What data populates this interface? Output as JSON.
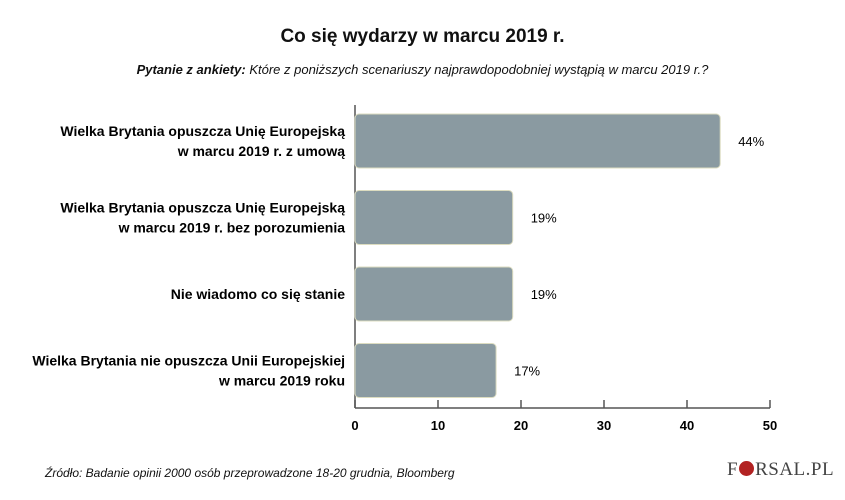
{
  "chart_data": {
    "type": "bar",
    "orientation": "horizontal",
    "title": "Co się wydarzy w marcu 2019 r.",
    "subtitle_label": "Pytanie z ankiety:",
    "subtitle": "Które z poniższych scenariuszy najprawdopodobniej wystąpią w marcu 2019 r.?",
    "categories": [
      [
        "Wielka Brytania opuszcza Unię Europejską",
        "w marcu 2019 r. z umową"
      ],
      [
        "Wielka Brytania opuszcza Unię Europejską",
        "w marcu 2019 r. bez porozumienia"
      ],
      [
        "Nie wiadomo co się stanie"
      ],
      [
        "Wielka Brytania nie opuszcza Unii Europejskiej",
        "w marcu 2019 roku"
      ]
    ],
    "values": [
      44,
      19,
      19,
      17
    ],
    "data_labels": [
      "44%",
      "19%",
      "19%",
      "17%"
    ],
    "xlim": [
      0,
      50
    ],
    "xticks": [
      0,
      10,
      20,
      30,
      40,
      50
    ],
    "grid": false,
    "bar_color": "#8a9aa1",
    "source": "Źródło: Badanie opinii 2000 osób przeprowadzone 18-20 grudnia, Bloomberg"
  },
  "logo": {
    "text": "FORSAL.PL",
    "accent": "#b22222"
  }
}
